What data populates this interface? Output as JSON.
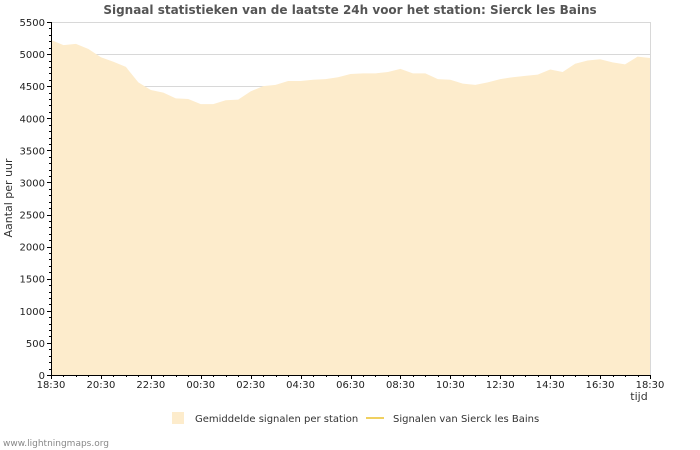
{
  "chart_data": {
    "type": "area",
    "title": "Signaal statistieken van de laatste 24h voor het station: Sierck les Bains",
    "ylabel": "Aantal per uur",
    "xlabel": "tijd",
    "ylim": [
      0,
      5500
    ],
    "yticks": [
      0,
      500,
      1000,
      1500,
      2000,
      2500,
      3000,
      3500,
      4000,
      4500,
      5000,
      5500
    ],
    "xticks": [
      "18:30",
      "20:30",
      "22:30",
      "00:30",
      "02:30",
      "04:30",
      "06:30",
      "08:30",
      "10:30",
      "12:30",
      "14:30",
      "16:30",
      "18:30"
    ],
    "x_hours": [
      0,
      0.5,
      1,
      1.5,
      2,
      2.5,
      3,
      3.5,
      4,
      4.5,
      5,
      5.5,
      6,
      6.5,
      7,
      7.5,
      8,
      8.5,
      9,
      9.5,
      10,
      10.5,
      11,
      11.5,
      12,
      12.5,
      13,
      13.5,
      14,
      14.5,
      15,
      15.5,
      16,
      16.5,
      17,
      17.5,
      18,
      18.5,
      19,
      19.5,
      20,
      20.5,
      21,
      21.5,
      22,
      22.5,
      23,
      23.5,
      24
    ],
    "series": [
      {
        "name": "Gemiddelde signalen per station",
        "color": "#fdeccc",
        "values": [
          5220,
          5140,
          5160,
          5080,
          4950,
          4880,
          4800,
          4560,
          4440,
          4400,
          4310,
          4300,
          4220,
          4220,
          4280,
          4290,
          4420,
          4500,
          4520,
          4580,
          4580,
          4600,
          4610,
          4640,
          4690,
          4700,
          4700,
          4720,
          4770,
          4700,
          4700,
          4610,
          4600,
          4540,
          4520,
          4560,
          4610,
          4640,
          4660,
          4680,
          4760,
          4720,
          4850,
          4900,
          4920,
          4870,
          4840,
          4960,
          4940
        ]
      },
      {
        "name": "Signalen van Sierck les Bains",
        "color": "#f0d060",
        "values": []
      }
    ],
    "legend": "bottom"
  },
  "footer": {
    "watermark": "www.lightningmaps.org"
  }
}
